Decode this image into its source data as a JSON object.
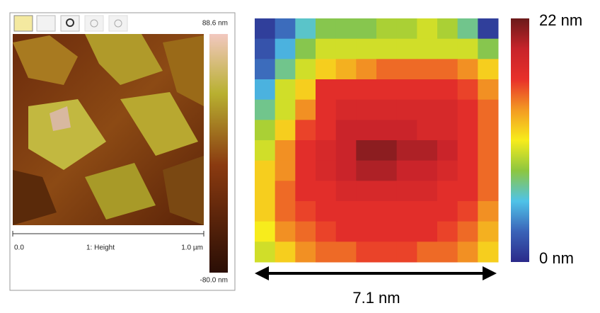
{
  "afm_panel": {
    "max_label": "88.6 nm",
    "min_label": "-80.0 nm",
    "scale_start": "0.0",
    "channel": "1: Height",
    "scale_end": "1.0 µm"
  },
  "chart_data": {
    "type": "heatmap",
    "values": [
      [
        1,
        3,
        6,
        8,
        8,
        8,
        9,
        9,
        10,
        9,
        7,
        1
      ],
      [
        2,
        5,
        8,
        10,
        10,
        10,
        10,
        10,
        10,
        10,
        10,
        8
      ],
      [
        3,
        7,
        10,
        12,
        13,
        14,
        15,
        15,
        15,
        15,
        14,
        12
      ],
      [
        5,
        10,
        12,
        17,
        17,
        17,
        17,
        17,
        17,
        17,
        16,
        14
      ],
      [
        7,
        10,
        14,
        17,
        18,
        18,
        18,
        18,
        18,
        18,
        17,
        15
      ],
      [
        9,
        12,
        16,
        17,
        19,
        19,
        19,
        19,
        18,
        18,
        17,
        15
      ],
      [
        10,
        14,
        17,
        18,
        19,
        21,
        21,
        20,
        20,
        19,
        17,
        15
      ],
      [
        12,
        14,
        17,
        18,
        19,
        20,
        20,
        19,
        19,
        18,
        17,
        15
      ],
      [
        12,
        15,
        17,
        17,
        18,
        18,
        18,
        18,
        18,
        17,
        17,
        15
      ],
      [
        12,
        15,
        16,
        17,
        17,
        17,
        17,
        17,
        17,
        17,
        16,
        14
      ],
      [
        11,
        14,
        15,
        16,
        17,
        17,
        17,
        17,
        17,
        16,
        15,
        13
      ],
      [
        10,
        12,
        14,
        15,
        15,
        16,
        16,
        16,
        15,
        15,
        14,
        12
      ]
    ],
    "zlim": [
      0,
      22
    ],
    "zticks": [
      {
        "value": 0,
        "label": "0 nm"
      },
      {
        "value": 22,
        "label": "22 nm"
      }
    ],
    "colorscale": [
      "#2b2a8a",
      "#3a63b8",
      "#4fc3e8",
      "#8dc63f",
      "#f7ec1c",
      "#f39a22",
      "#e8302a",
      "#c7232a",
      "#6b1a1a"
    ],
    "scale_bar": "7.1 nm"
  }
}
